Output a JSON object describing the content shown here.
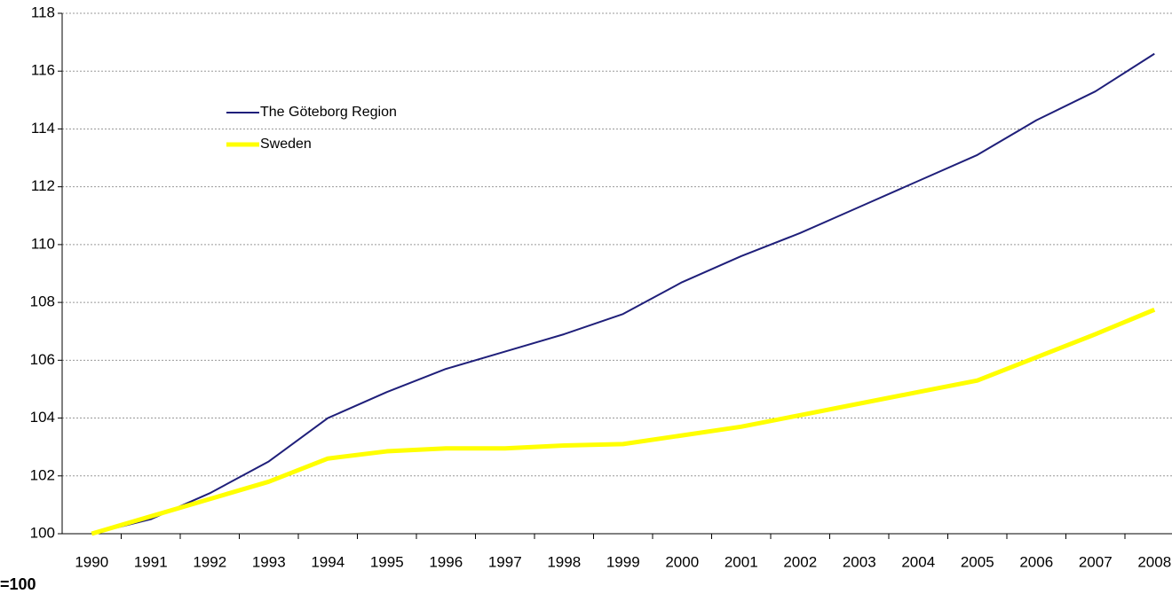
{
  "chart_data": {
    "type": "line",
    "note": "=100",
    "categories": [
      "1990",
      "1991",
      "1992",
      "1993",
      "1994",
      "1995",
      "1996",
      "1997",
      "1998",
      "1999",
      "2000",
      "2001",
      "2002",
      "2003",
      "2004",
      "2005",
      "2006",
      "2007",
      "2008"
    ],
    "series": [
      {
        "name": "The Göteborg Region",
        "color": "#1f1f7a",
        "width": 2,
        "values": [
          100,
          100.5,
          101.4,
          102.5,
          104.0,
          104.9,
          105.7,
          106.3,
          106.9,
          107.6,
          108.7,
          109.6,
          110.4,
          111.3,
          112.2,
          113.1,
          114.3,
          115.3,
          116.6
        ]
      },
      {
        "name": "Sweden",
        "color": "#ffff00",
        "width": 5,
        "values": [
          100,
          100.6,
          101.2,
          101.8,
          102.6,
          102.85,
          102.95,
          102.95,
          103.05,
          103.1,
          103.4,
          103.7,
          104.1,
          104.5,
          104.9,
          105.3,
          106.1,
          106.9,
          107.75
        ]
      }
    ],
    "ylim": [
      100,
      118
    ],
    "yticks": [
      100,
      102,
      104,
      106,
      108,
      110,
      112,
      114,
      116,
      118
    ],
    "grid": true
  }
}
